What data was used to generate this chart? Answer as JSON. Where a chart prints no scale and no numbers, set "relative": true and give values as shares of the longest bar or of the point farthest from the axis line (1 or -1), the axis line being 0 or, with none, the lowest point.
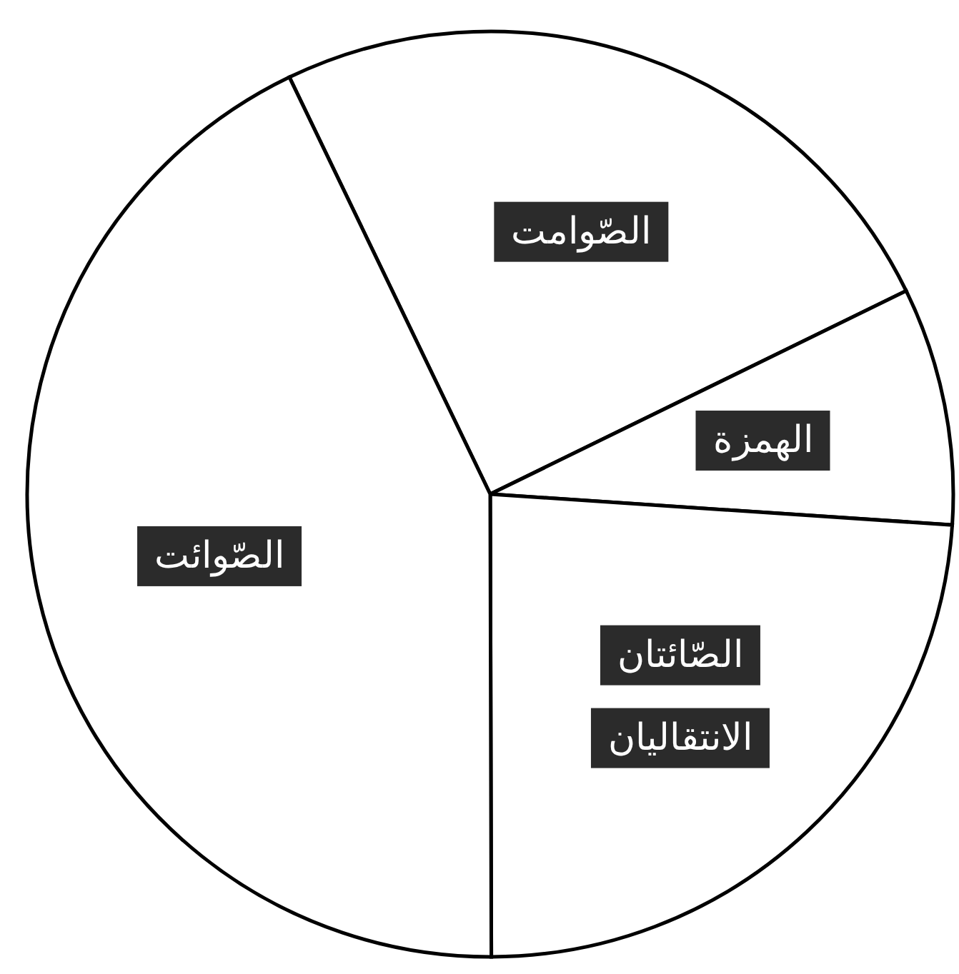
{
  "chart_data": {
    "type": "pie",
    "relative": true,
    "categories": [
      "الصّوامت",
      "الهمزة",
      "الصّائتان الانتقاليان",
      "الصّوائت"
    ],
    "values": [
      24.9,
      8.3,
      23.9,
      42.9
    ],
    "colors": [
      "#ffffff",
      "#ffffff",
      "#ffffff",
      "#ffffff"
    ]
  }
}
